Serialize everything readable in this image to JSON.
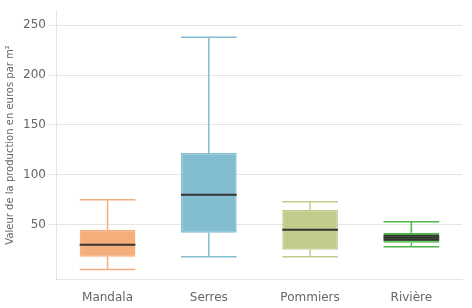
{
  "chart_data": {
    "type": "box",
    "categories": [
      "Mandala",
      "Serres",
      "Pommiers",
      "Rivière"
    ],
    "boxes": [
      {
        "whislo": 5,
        "q1": 18,
        "med": 30,
        "q3": 45,
        "whishi": 75
      },
      {
        "whislo": 18,
        "q1": 42,
        "med": 80,
        "q3": 122,
        "whishi": 238
      },
      {
        "whislo": 18,
        "q1": 25,
        "med": 45,
        "q3": 65,
        "whishi": 73
      },
      {
        "whislo": 28,
        "q1": 32,
        "med": 37,
        "q3": 42,
        "whishi": 53
      }
    ],
    "extra_medians": [
      {
        "category": "Rivière",
        "values": [
          35,
          39
        ]
      }
    ],
    "colors": [
      "#F5AD7A",
      "#82BDD0",
      "#BFCC8C",
      "#4DB848"
    ],
    "ylabel": "Valeur de la production en euros par m²",
    "ylim": [
      -5,
      265
    ],
    "yticks": [
      50,
      100,
      150,
      200,
      250
    ],
    "grid": true
  }
}
